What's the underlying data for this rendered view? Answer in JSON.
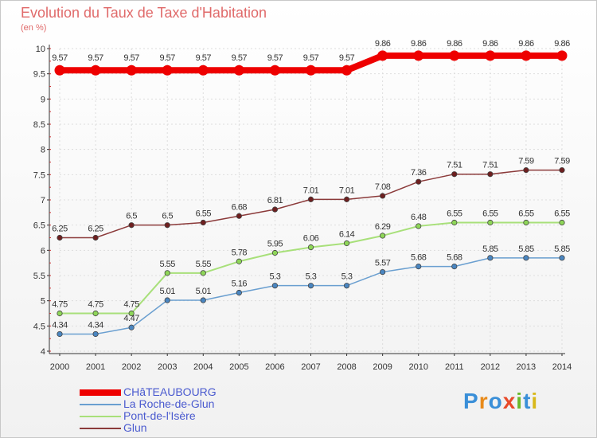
{
  "chart_data": {
    "type": "line",
    "title": "Evolution du Taux de Taxe d'Habitation",
    "ylabel": "(en %)",
    "x": [
      "2000",
      "2001",
      "2002",
      "2003",
      "2004",
      "2005",
      "2006",
      "2007",
      "2008",
      "2009",
      "2010",
      "2011",
      "2012",
      "2013",
      "2014"
    ],
    "ylim": [
      4,
      10
    ],
    "yticks": [
      4,
      4.5,
      5,
      5.5,
      6,
      6.5,
      7,
      7.5,
      8,
      8.5,
      9,
      9.5,
      10
    ],
    "ytick_labels": [
      "4",
      "4.5",
      "5",
      "5.5",
      "6",
      "6.5",
      "7",
      "7.5",
      "8",
      "8.5",
      "9",
      "9.5",
      "10"
    ],
    "grid": true,
    "series": [
      {
        "name": "CHâTEAUBOURG",
        "color": "#ee0000",
        "marker_fill": "#ee0000",
        "width": 8,
        "values": [
          9.57,
          9.57,
          9.57,
          9.57,
          9.57,
          9.57,
          9.57,
          9.57,
          9.57,
          9.86,
          9.86,
          9.86,
          9.86,
          9.86,
          9.86
        ],
        "labels": [
          "9.57",
          "9.57",
          "9.57",
          "9.57",
          "9.57",
          "9.57",
          "9.57",
          "9.57",
          "9.57",
          "9.86",
          "9.86",
          "9.86",
          "9.86",
          "9.86",
          "9.86"
        ]
      },
      {
        "name": "La Roche-de-Glun",
        "color": "#6a9fd0",
        "marker_fill": "#4a86c1",
        "width": 1.5,
        "values": [
          4.34,
          4.34,
          4.47,
          5.01,
          5.01,
          5.16,
          5.3,
          5.3,
          5.3,
          5.57,
          5.68,
          5.68,
          5.85,
          5.85,
          5.85
        ],
        "labels": [
          "4.34",
          "4.34",
          "4.47",
          "5.01",
          "5.01",
          "5.16",
          "5.3",
          "5.3",
          "5.3",
          "5.57",
          "5.68",
          "5.68",
          "5.85",
          "5.85",
          "5.85"
        ]
      },
      {
        "name": "Pont-de-l'Isère",
        "color": "#a8e07a",
        "marker_fill": "#8ed658",
        "width": 2,
        "values": [
          4.75,
          4.75,
          4.75,
          5.55,
          5.55,
          5.78,
          5.95,
          6.06,
          6.14,
          6.29,
          6.48,
          6.55,
          6.55,
          6.55,
          6.55
        ],
        "labels": [
          "4.75",
          "4.75",
          "4.75",
          "5.55",
          "5.55",
          "5.78",
          "5.95",
          "6.06",
          "6.14",
          "6.29",
          "6.48",
          "6.55",
          "6.55",
          "6.55",
          "6.55"
        ]
      },
      {
        "name": "Glun",
        "color": "#8b3a3a",
        "marker_fill": "#6e1f1f",
        "width": 1.5,
        "values": [
          6.25,
          6.25,
          6.5,
          6.5,
          6.55,
          6.68,
          6.81,
          7.01,
          7.01,
          7.08,
          7.36,
          7.51,
          7.51,
          7.59,
          7.59
        ],
        "labels": [
          "6.25",
          "6.25",
          "6.5",
          "6.5",
          "6.55",
          "6.68",
          "6.81",
          "7.01",
          "7.01",
          "7.08",
          "7.36",
          "7.51",
          "7.51",
          "7.59",
          "7.59"
        ]
      }
    ]
  },
  "logo": {
    "text": "Proxiti"
  }
}
